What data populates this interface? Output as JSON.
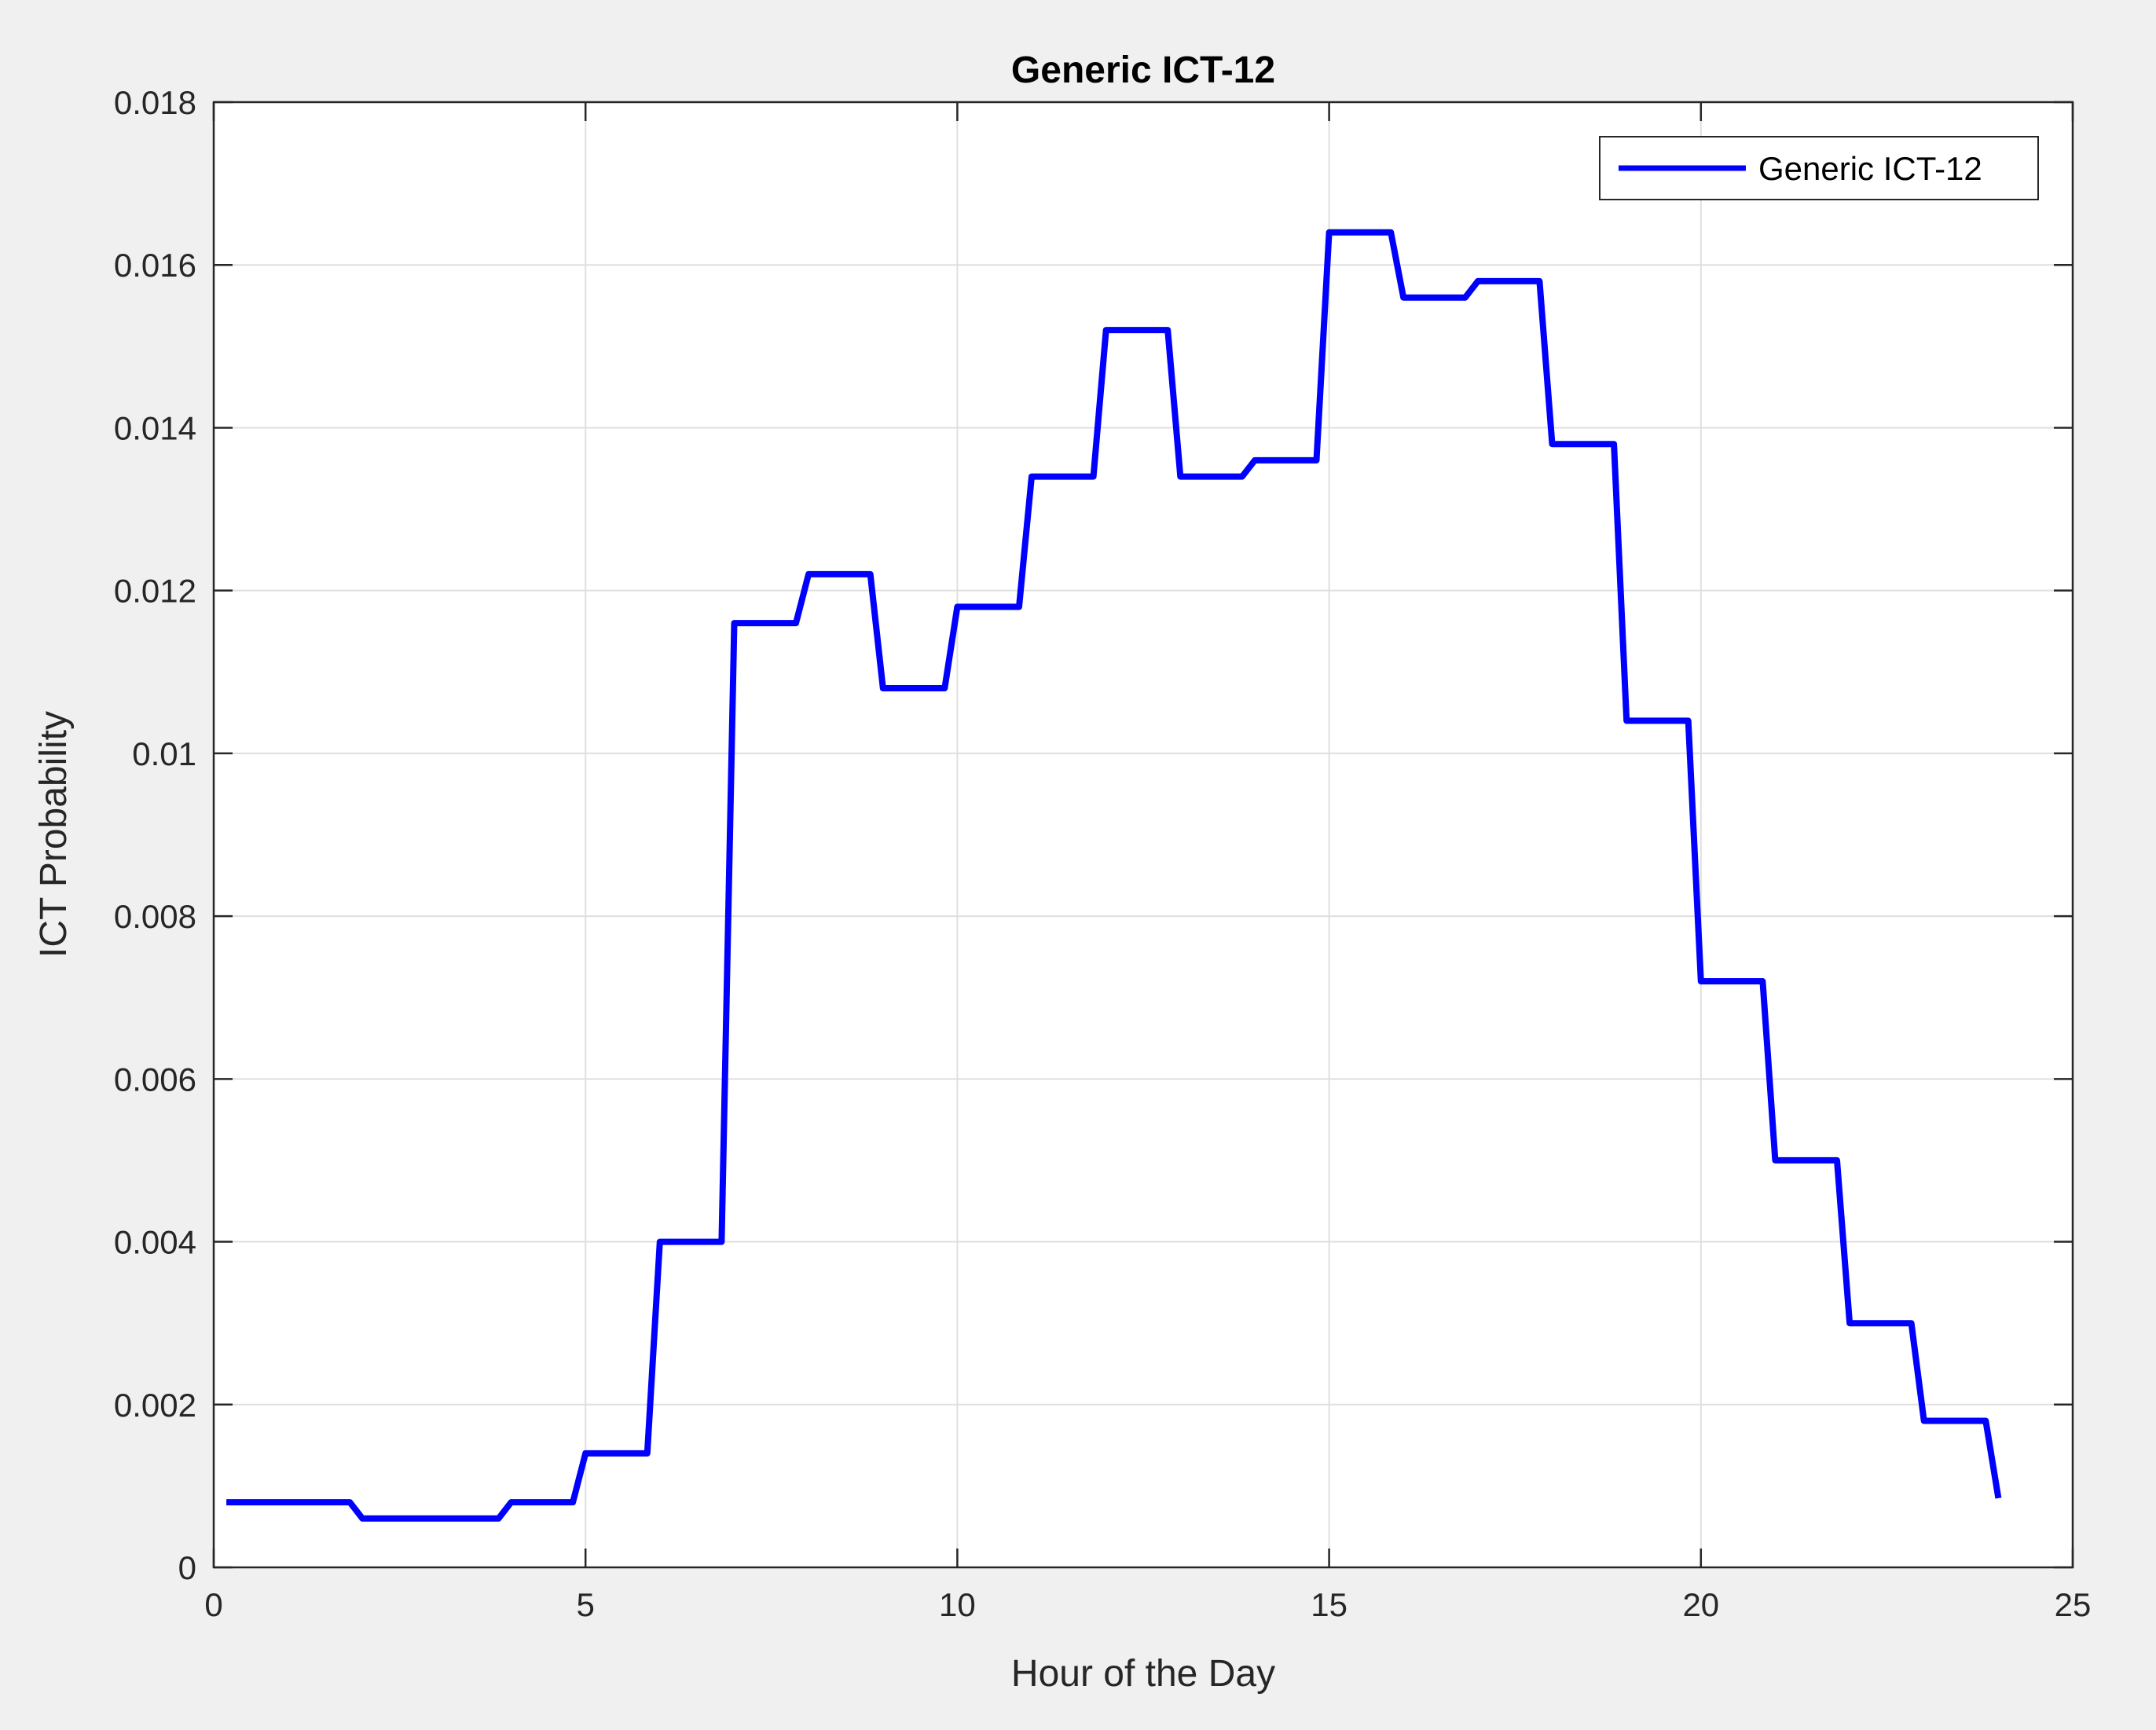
{
  "chart_data": {
    "type": "line",
    "title": "Generic ICT-12",
    "xlabel": "Hour of the Day",
    "ylabel": "ICT Probability",
    "xlim": [
      0,
      25
    ],
    "ylim": [
      0,
      0.018
    ],
    "xticks": [
      0,
      5,
      10,
      15,
      20,
      25
    ],
    "xtick_labels": [
      "0",
      "5",
      "10",
      "15",
      "20",
      "25"
    ],
    "yticks": [
      0,
      0.002,
      0.004,
      0.006,
      0.008,
      0.01,
      0.012,
      0.014,
      0.016,
      0.018
    ],
    "ytick_labels": [
      "0",
      "0.002",
      "0.004",
      "0.006",
      "0.008",
      "0.01",
      "0.012",
      "0.014",
      "0.016",
      "0.018"
    ],
    "grid": true,
    "legend_position": "top-right",
    "series": [
      {
        "name": "Generic ICT-12",
        "color": "#0000ff",
        "x": [
          0.17,
          1.83,
          2.0,
          3.83,
          4.0,
          4.83,
          5.0,
          5.83,
          6.0,
          6.83,
          7.0,
          7.83,
          8.0,
          8.83,
          9.0,
          9.83,
          10.0,
          10.83,
          11.0,
          11.83,
          12.0,
          12.83,
          13.0,
          13.83,
          14.0,
          14.83,
          15.0,
          15.83,
          16.0,
          16.83,
          17.0,
          17.83,
          18.0,
          18.83,
          19.0,
          19.83,
          20.0,
          20.83,
          21.0,
          21.83,
          22.0,
          22.83,
          23.0,
          23.83,
          24.0
        ],
        "y": [
          0.0008,
          0.0008,
          0.0006,
          0.0006,
          0.0008,
          0.0008,
          0.0014,
          0.0014,
          0.004,
          0.004,
          0.0116,
          0.0116,
          0.0122,
          0.0122,
          0.0108,
          0.0108,
          0.0118,
          0.0118,
          0.0134,
          0.0134,
          0.0152,
          0.0152,
          0.0134,
          0.0134,
          0.0136,
          0.0136,
          0.0164,
          0.0164,
          0.0156,
          0.0156,
          0.0158,
          0.0158,
          0.0138,
          0.0138,
          0.0104,
          0.0104,
          0.0072,
          0.0072,
          0.005,
          0.005,
          0.003,
          0.003,
          0.0018,
          0.0018,
          0.00085
        ]
      }
    ]
  }
}
